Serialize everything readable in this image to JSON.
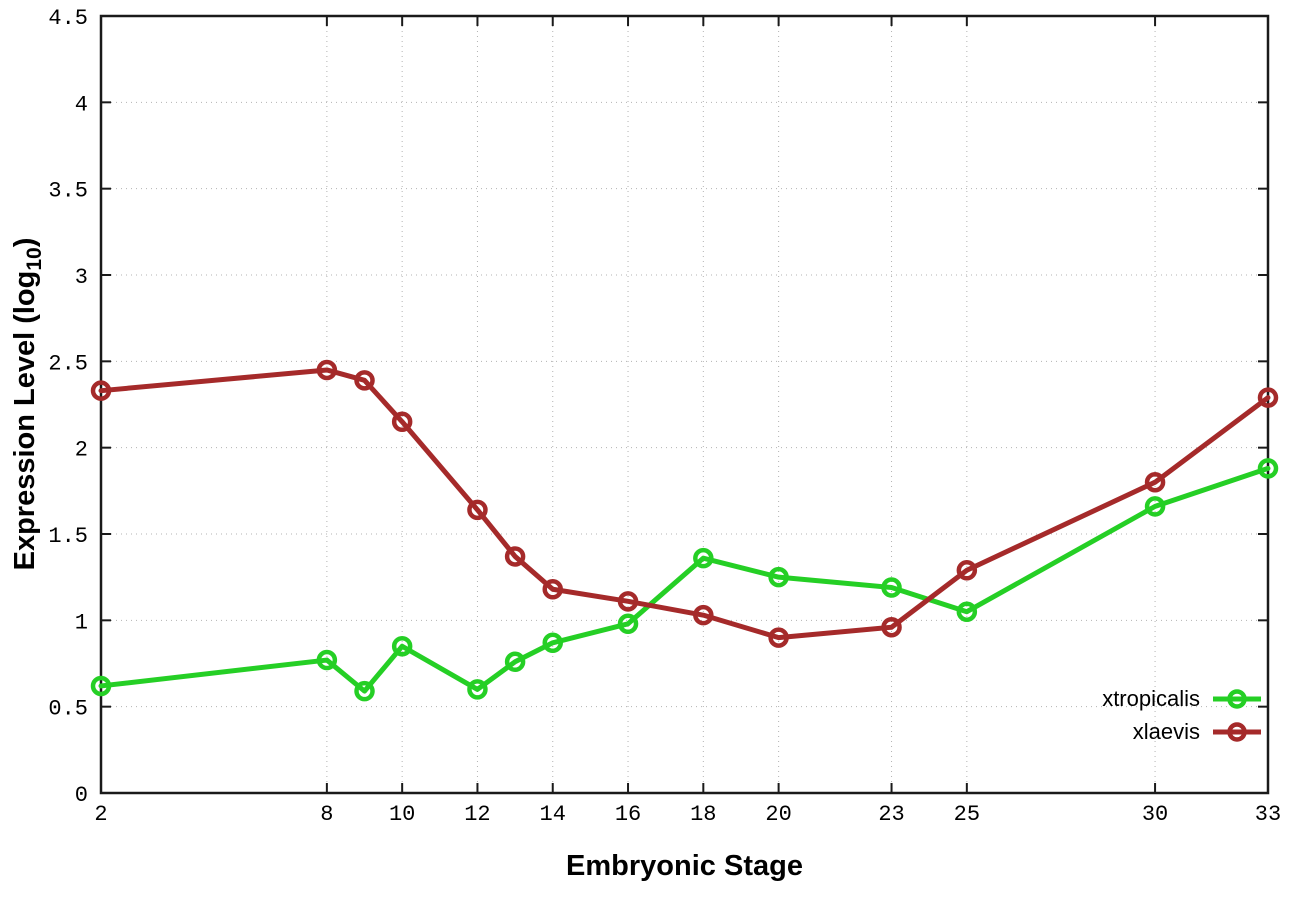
{
  "chart_data": {
    "type": "line",
    "title": "",
    "xlabel": "Embryonic Stage",
    "ylabel": "Expression Level (log10)",
    "ylabel_parts": {
      "main": "Expression Level (log",
      "sub": "10",
      "end": ")"
    },
    "xlim": [
      2,
      33
    ],
    "ylim": [
      0,
      4.5
    ],
    "grid": true,
    "grid_style": "dotted",
    "legend_position": "bottom-right",
    "marker": "open-circle",
    "x_ticks": [
      2,
      8,
      10,
      12,
      14,
      16,
      18,
      20,
      23,
      25,
      30,
      33
    ],
    "x_tick_labels": [
      "2",
      "8",
      "10",
      "12",
      "14",
      "16",
      "18",
      "20",
      "23",
      "25",
      "30",
      "33"
    ],
    "y_ticks": [
      0,
      0.5,
      1,
      1.5,
      2,
      2.5,
      3,
      3.5,
      4,
      4.5
    ],
    "y_tick_labels": [
      "0",
      "0.5",
      "1",
      "1.5",
      "2",
      "2.5",
      "3",
      "3.5",
      "4",
      "4.5"
    ],
    "x": [
      2,
      8,
      9,
      10,
      12,
      13,
      14,
      16,
      18,
      20,
      23,
      25,
      30,
      33
    ],
    "series": [
      {
        "name": "xtropicalis",
        "color": "#25cf25",
        "values": [
          0.62,
          0.77,
          0.59,
          0.85,
          0.6,
          0.76,
          0.87,
          0.98,
          1.36,
          1.25,
          1.19,
          1.05,
          1.66,
          1.88
        ]
      },
      {
        "name": "xlaevis",
        "color": "#a52a2a",
        "values": [
          2.33,
          2.45,
          2.39,
          2.15,
          1.64,
          1.37,
          1.18,
          1.11,
          1.03,
          0.9,
          0.96,
          1.29,
          1.8,
          2.29
        ]
      }
    ],
    "colors": {
      "border": "#1a1a1a",
      "grid": "#b3b3b3",
      "tick_text": "#000000"
    }
  }
}
